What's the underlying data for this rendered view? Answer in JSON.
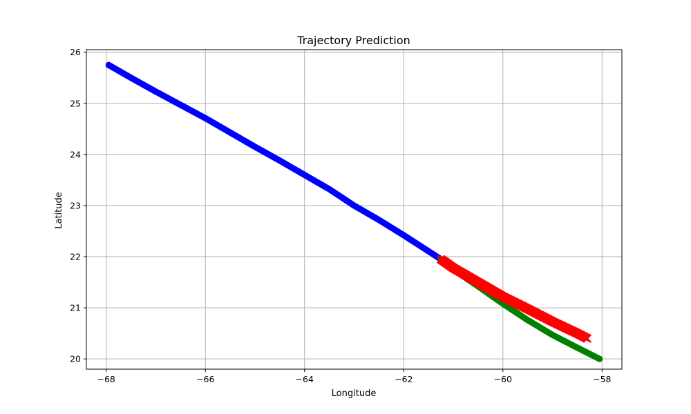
{
  "chart_data": {
    "type": "scatter",
    "title": "Trajectory Prediction",
    "xlabel": "Longitude",
    "ylabel": "Latitude",
    "xlim": [
      -68.4,
      -57.6
    ],
    "ylim": [
      19.8,
      26.05
    ],
    "xticks": [
      -68,
      -66,
      -64,
      -62,
      -60,
      -58
    ],
    "yticks": [
      20,
      21,
      22,
      23,
      24,
      25,
      26
    ],
    "grid": true,
    "series": [
      {
        "color": "#0000ff",
        "marker": "circle",
        "x": [
          -67.95,
          -67.5,
          -67.0,
          -66.5,
          -66.0,
          -65.5,
          -65.0,
          -64.5,
          -64.0,
          -63.5,
          -63.0,
          -62.5,
          -62.0,
          -61.6,
          -61.25
        ],
        "y": [
          25.75,
          25.5,
          25.23,
          24.97,
          24.71,
          24.43,
          24.15,
          23.88,
          23.6,
          23.32,
          23.0,
          22.72,
          22.42,
          22.17,
          21.95
        ]
      },
      {
        "color": "#ff0000",
        "marker": "x",
        "x": [
          -61.25,
          -61.0,
          -60.5,
          -60.0,
          -59.5,
          -59.0,
          -58.5,
          -58.3
        ],
        "y": [
          21.95,
          21.78,
          21.5,
          21.22,
          20.98,
          20.73,
          20.5,
          20.4
        ]
      },
      {
        "color": "#008000",
        "marker": "circle",
        "x": [
          -61.25,
          -61.0,
          -60.5,
          -60.0,
          -59.5,
          -59.0,
          -58.5,
          -58.05
        ],
        "y": [
          21.95,
          21.75,
          21.42,
          21.08,
          20.76,
          20.47,
          20.22,
          20.0
        ]
      }
    ]
  }
}
